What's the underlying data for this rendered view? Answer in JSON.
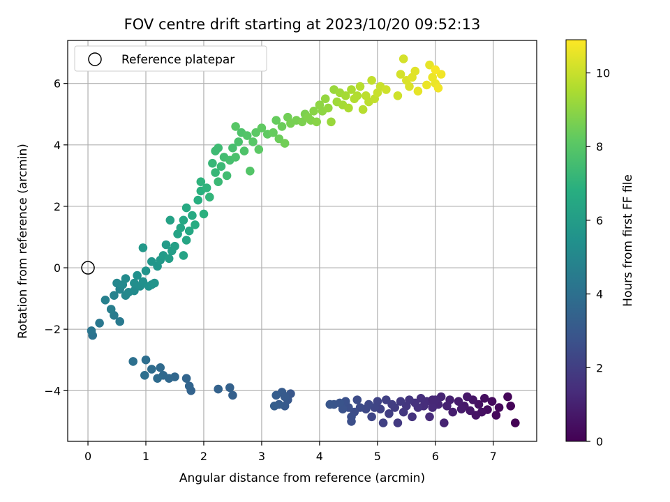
{
  "chart_data": {
    "type": "scatter",
    "title": "FOV centre drift starting at 2023/10/20 09:52:13",
    "xlabel": "Angular distance from reference (arcmin)",
    "ylabel": "Rotation from reference (arcmin)",
    "xlim": [
      -0.35,
      7.75
    ],
    "ylim": [
      -5.65,
      7.4
    ],
    "xticks": [
      0,
      1,
      2,
      3,
      4,
      5,
      6,
      7
    ],
    "yticks": [
      -4,
      -2,
      0,
      2,
      4,
      6
    ],
    "grid": true,
    "legend": {
      "placement": "top-left",
      "entries": [
        "Reference platepar"
      ]
    },
    "reference_point": {
      "x": 0,
      "y": 0
    },
    "colorbar": {
      "label": "Hours from first FF file",
      "colormap": "viridis",
      "range": [
        0,
        10.9
      ],
      "ticks": [
        0,
        2,
        4,
        6,
        8,
        10
      ]
    },
    "points": [
      [
        7.38,
        -5.05,
        0.05
      ],
      [
        7.3,
        -4.5,
        0.1
      ],
      [
        7.25,
        -4.2,
        0.15
      ],
      [
        7.1,
        -4.55,
        0.2
      ],
      [
        7.05,
        -4.8,
        0.25
      ],
      [
        6.98,
        -4.35,
        0.3
      ],
      [
        6.9,
        -4.62,
        0.35
      ],
      [
        6.85,
        -4.25,
        0.4
      ],
      [
        6.8,
        -4.7,
        0.45
      ],
      [
        6.75,
        -4.45,
        0.5
      ],
      [
        6.7,
        -4.8,
        0.55
      ],
      [
        6.65,
        -4.3,
        0.6
      ],
      [
        6.6,
        -4.65,
        0.65
      ],
      [
        6.55,
        -4.2,
        0.7
      ],
      [
        6.5,
        -4.5,
        0.75
      ],
      [
        6.45,
        -4.6,
        0.8
      ],
      [
        6.4,
        -4.35,
        0.85
      ],
      [
        6.3,
        -4.7,
        0.9
      ],
      [
        6.25,
        -4.3,
        0.95
      ],
      [
        6.2,
        -4.5,
        1.0
      ],
      [
        6.15,
        -5.05,
        1.05
      ],
      [
        6.1,
        -4.2,
        1.1
      ],
      [
        6.05,
        -4.45,
        1.15
      ],
      [
        6.0,
        -4.3,
        1.2
      ],
      [
        5.95,
        -4.55,
        1.25
      ],
      [
        5.9,
        -4.85,
        1.3
      ],
      [
        5.85,
        -4.35,
        1.35
      ],
      [
        5.8,
        -4.5,
        1.4
      ],
      [
        5.75,
        -4.25,
        1.45
      ],
      [
        5.7,
        -4.55,
        1.5
      ],
      [
        5.65,
        -4.4,
        1.55
      ],
      [
        5.6,
        -4.85,
        1.6
      ],
      [
        5.55,
        -4.3,
        1.65
      ],
      [
        5.5,
        -4.5,
        1.7
      ],
      [
        5.45,
        -4.7,
        1.75
      ],
      [
        5.4,
        -4.35,
        1.8
      ],
      [
        5.35,
        -5.05,
        1.85
      ],
      [
        5.3,
        -4.55,
        1.9
      ],
      [
        5.25,
        -4.45,
        1.95
      ],
      [
        5.2,
        -4.75,
        2.0
      ],
      [
        5.15,
        -4.3,
        2.05
      ],
      [
        5.1,
        -5.05,
        2.1
      ],
      [
        5.05,
        -4.6,
        2.15
      ],
      [
        5.0,
        -4.35,
        2.2
      ],
      [
        4.95,
        -4.55,
        2.25
      ],
      [
        4.9,
        -4.85,
        2.3
      ],
      [
        4.85,
        -4.45,
        2.35
      ],
      [
        4.8,
        -4.6,
        2.4
      ],
      [
        4.7,
        -4.55,
        2.45
      ],
      [
        4.65,
        -4.3,
        2.5
      ],
      [
        4.6,
        -4.7,
        2.55
      ],
      [
        4.55,
        -5.0,
        2.6
      ],
      [
        4.5,
        -4.55,
        2.65
      ],
      [
        4.45,
        -4.35,
        2.7
      ],
      [
        4.4,
        -4.6,
        2.75
      ],
      [
        4.35,
        -4.4,
        2.8
      ],
      [
        4.25,
        -4.45,
        2.85
      ],
      [
        4.18,
        -4.45,
        2.9
      ],
      [
        4.55,
        -4.85,
        2.6
      ],
      [
        5.95,
        -4.3,
        1.2
      ],
      [
        3.5,
        -4.1,
        2.95
      ],
      [
        3.45,
        -4.3,
        3.0
      ],
      [
        3.4,
        -4.5,
        3.05
      ],
      [
        3.35,
        -4.05,
        3.1
      ],
      [
        3.3,
        -4.45,
        3.15
      ],
      [
        3.25,
        -4.15,
        3.2
      ],
      [
        3.22,
        -4.5,
        3.25
      ],
      [
        3.4,
        -4.2,
        3.05
      ],
      [
        2.5,
        -4.15,
        3.3
      ],
      [
        2.45,
        -3.9,
        3.35
      ],
      [
        2.25,
        -3.95,
        3.4
      ],
      [
        1.78,
        -4.0,
        3.45
      ],
      [
        1.75,
        -3.85,
        3.5
      ],
      [
        1.7,
        -3.6,
        3.55
      ],
      [
        1.5,
        -3.55,
        3.6
      ],
      [
        1.4,
        -3.6,
        3.65
      ],
      [
        1.3,
        -3.5,
        3.7
      ],
      [
        1.25,
        -3.25,
        3.75
      ],
      [
        1.2,
        -3.6,
        3.8
      ],
      [
        1.1,
        -3.3,
        3.85
      ],
      [
        1.0,
        -3.0,
        3.9
      ],
      [
        0.98,
        -3.5,
        3.95
      ],
      [
        0.78,
        -3.05,
        4.0
      ],
      [
        0.08,
        -2.2,
        4.1
      ],
      [
        0.06,
        -2.05,
        4.2
      ],
      [
        0.2,
        -1.8,
        4.3
      ],
      [
        0.55,
        -1.75,
        4.4
      ],
      [
        0.45,
        -1.55,
        4.5
      ],
      [
        0.4,
        -1.35,
        4.6
      ],
      [
        0.3,
        -1.05,
        4.7
      ],
      [
        0.45,
        -0.9,
        4.8
      ],
      [
        0.55,
        -0.7,
        4.9
      ],
      [
        0.65,
        -0.9,
        5.0
      ],
      [
        0.5,
        -0.5,
        5.0
      ],
      [
        0.6,
        -0.55,
        5.1
      ],
      [
        0.7,
        -0.8,
        5.1
      ],
      [
        0.65,
        -0.35,
        5.2
      ],
      [
        0.8,
        -0.75,
        5.2
      ],
      [
        0.9,
        -0.6,
        5.3
      ],
      [
        0.8,
        -0.5,
        5.3
      ],
      [
        0.85,
        -0.25,
        5.4
      ],
      [
        0.95,
        -0.45,
        5.4
      ],
      [
        1.05,
        -0.6,
        5.5
      ],
      [
        1.1,
        -0.55,
        5.5
      ],
      [
        1.0,
        -0.1,
        5.6
      ],
      [
        1.15,
        -0.5,
        5.6
      ],
      [
        1.1,
        0.2,
        5.7
      ],
      [
        1.2,
        0.05,
        5.7
      ],
      [
        0.95,
        0.65,
        5.8
      ],
      [
        1.25,
        0.25,
        5.8
      ],
      [
        1.3,
        0.4,
        5.9
      ],
      [
        1.35,
        0.75,
        5.9
      ],
      [
        1.4,
        0.3,
        6.0
      ],
      [
        1.45,
        0.55,
        6.0
      ],
      [
        1.5,
        0.7,
        6.1
      ],
      [
        1.42,
        1.55,
        6.2
      ],
      [
        1.55,
        1.1,
        6.3
      ],
      [
        1.6,
        1.3,
        6.4
      ],
      [
        1.65,
        0.4,
        6.3
      ],
      [
        1.7,
        0.9,
        6.4
      ],
      [
        1.65,
        1.55,
        6.5
      ],
      [
        1.75,
        1.2,
        6.5
      ],
      [
        1.8,
        1.7,
        6.6
      ],
      [
        1.7,
        1.95,
        6.6
      ],
      [
        1.85,
        1.4,
        6.7
      ],
      [
        1.9,
        2.2,
        6.8
      ],
      [
        1.95,
        2.5,
        6.9
      ],
      [
        2.0,
        1.75,
        6.9
      ],
      [
        1.95,
        2.8,
        7.0
      ],
      [
        2.05,
        2.6,
        7.0
      ],
      [
        2.1,
        2.3,
        7.1
      ],
      [
        2.15,
        3.4,
        7.2
      ],
      [
        2.2,
        3.1,
        7.2
      ],
      [
        2.25,
        2.8,
        7.3
      ],
      [
        2.3,
        3.3,
        7.3
      ],
      [
        2.2,
        3.8,
        7.4
      ],
      [
        2.25,
        3.9,
        7.4
      ],
      [
        2.35,
        3.6,
        7.5
      ],
      [
        2.4,
        3.0,
        7.5
      ],
      [
        2.45,
        3.5,
        7.6
      ],
      [
        2.5,
        3.9,
        7.6
      ],
      [
        2.55,
        3.6,
        7.7
      ],
      [
        2.6,
        4.1,
        7.7
      ],
      [
        2.65,
        4.4,
        7.8
      ],
      [
        2.7,
        3.8,
        7.8
      ],
      [
        2.75,
        4.3,
        7.9
      ],
      [
        2.8,
        3.15,
        7.9
      ],
      [
        2.55,
        4.6,
        8.0
      ],
      [
        2.85,
        4.1,
        8.0
      ],
      [
        2.9,
        4.4,
        8.1
      ],
      [
        2.95,
        3.85,
        8.1
      ],
      [
        3.0,
        4.55,
        8.2
      ],
      [
        3.1,
        4.35,
        8.2
      ],
      [
        3.2,
        4.4,
        8.3
      ],
      [
        3.25,
        4.8,
        8.3
      ],
      [
        3.3,
        4.2,
        8.4
      ],
      [
        3.35,
        4.6,
        8.4
      ],
      [
        3.4,
        4.05,
        8.5
      ],
      [
        3.45,
        4.9,
        8.5
      ],
      [
        3.5,
        4.7,
        8.6
      ],
      [
        3.6,
        4.8,
        8.6
      ],
      [
        3.7,
        4.75,
        8.7
      ],
      [
        3.75,
        5.0,
        8.7
      ],
      [
        3.8,
        4.9,
        8.8
      ],
      [
        3.85,
        4.8,
        8.8
      ],
      [
        3.9,
        5.1,
        8.9
      ],
      [
        3.95,
        4.75,
        8.9
      ],
      [
        4.0,
        5.3,
        9.0
      ],
      [
        4.05,
        5.1,
        9.0
      ],
      [
        4.1,
        5.5,
        9.1
      ],
      [
        4.15,
        5.2,
        9.1
      ],
      [
        4.2,
        4.75,
        9.2
      ],
      [
        4.25,
        5.8,
        9.2
      ],
      [
        4.3,
        5.4,
        9.3
      ],
      [
        4.35,
        5.7,
        9.3
      ],
      [
        4.4,
        5.3,
        9.4
      ],
      [
        4.45,
        5.6,
        9.4
      ],
      [
        4.5,
        5.2,
        9.5
      ],
      [
        4.55,
        5.8,
        9.5
      ],
      [
        4.6,
        5.5,
        9.6
      ],
      [
        4.65,
        5.6,
        9.6
      ],
      [
        4.7,
        5.9,
        9.7
      ],
      [
        4.75,
        5.15,
        9.7
      ],
      [
        4.8,
        5.6,
        9.8
      ],
      [
        4.85,
        5.4,
        9.8
      ],
      [
        4.9,
        6.1,
        9.9
      ],
      [
        4.95,
        5.5,
        9.9
      ],
      [
        5.0,
        5.7,
        10.0
      ],
      [
        5.05,
        5.9,
        10.0
      ],
      [
        5.15,
        5.8,
        10.1
      ],
      [
        5.35,
        5.6,
        10.1
      ],
      [
        5.4,
        6.3,
        10.2
      ],
      [
        5.45,
        6.8,
        10.2
      ],
      [
        5.5,
        6.1,
        10.3
      ],
      [
        5.55,
        5.9,
        10.3
      ],
      [
        5.6,
        6.2,
        10.4
      ],
      [
        5.65,
        6.4,
        10.4
      ],
      [
        5.7,
        5.75,
        10.5
      ],
      [
        5.9,
        6.6,
        10.5
      ],
      [
        5.95,
        6.2,
        10.6
      ],
      [
        6.0,
        6.0,
        10.6
      ],
      [
        6.05,
        5.85,
        10.7
      ],
      [
        6.1,
        6.3,
        10.7
      ],
      [
        6.0,
        6.45,
        10.8
      ],
      [
        5.85,
        5.95,
        10.6
      ]
    ]
  }
}
